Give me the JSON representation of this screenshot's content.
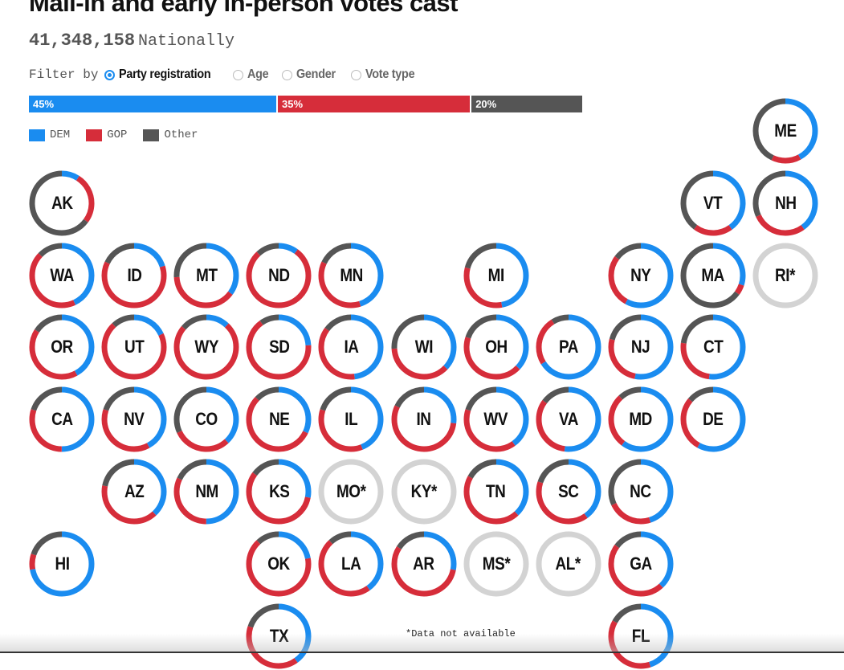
{
  "header": {
    "title": "Mail-in and early in-person votes cast",
    "total": "41,348,158",
    "total_label": "Nationally"
  },
  "filter": {
    "label": "Filter by",
    "options": [
      {
        "label": "Party registration",
        "checked": true
      },
      {
        "label": "Age",
        "checked": false
      },
      {
        "label": "Gender",
        "checked": false
      },
      {
        "label": "Vote type",
        "checked": false
      }
    ]
  },
  "national_bar": [
    {
      "label": "45%",
      "value": 45,
      "party": "DEM"
    },
    {
      "label": "35%",
      "value": 35,
      "party": "GOP"
    },
    {
      "label": "20%",
      "value": 20,
      "party": "Other"
    }
  ],
  "legend": [
    {
      "label": "DEM",
      "color": "#1a8cf0"
    },
    {
      "label": "GOP",
      "color": "#d62d3a"
    },
    {
      "label": "Other",
      "color": "#555555"
    }
  ],
  "colors": {
    "dem": "#1a8cf0",
    "gop": "#d62d3a",
    "other": "#555555",
    "na": "#d3d3d3"
  },
  "states": [
    {
      "abbr": "ME",
      "dem": 0.42,
      "gop": 0.15,
      "other": 0.43
    },
    {
      "abbr": "AK",
      "dem": 0.09,
      "gop": 0.26,
      "other": 0.65
    },
    {
      "abbr": "VT",
      "dem": 0.4,
      "gop": 0.2,
      "other": 0.4
    },
    {
      "abbr": "NH",
      "dem": 0.4,
      "gop": 0.28,
      "other": 0.32
    },
    {
      "abbr": "WA",
      "dem": 0.43,
      "gop": 0.44,
      "other": 0.13
    },
    {
      "abbr": "ID",
      "dem": 0.2,
      "gop": 0.62,
      "other": 0.18
    },
    {
      "abbr": "MT",
      "dem": 0.35,
      "gop": 0.39,
      "other": 0.26
    },
    {
      "abbr": "ND",
      "dem": 0.1,
      "gop": 0.78,
      "other": 0.12
    },
    {
      "abbr": "MN",
      "dem": 0.45,
      "gop": 0.37,
      "other": 0.18
    },
    {
      "abbr": "MI",
      "dem": 0.47,
      "gop": 0.32,
      "other": 0.21
    },
    {
      "abbr": "NY",
      "dem": 0.58,
      "gop": 0.27,
      "other": 0.15
    },
    {
      "abbr": "MA",
      "dem": 0.3,
      "gop": 0.05,
      "other": 0.65
    },
    {
      "abbr": "RI*",
      "na": true
    },
    {
      "abbr": "OR",
      "dem": 0.42,
      "gop": 0.42,
      "other": 0.16
    },
    {
      "abbr": "UT",
      "dem": 0.18,
      "gop": 0.7,
      "other": 0.12
    },
    {
      "abbr": "WY",
      "dem": 0.12,
      "gop": 0.74,
      "other": 0.14
    },
    {
      "abbr": "SD",
      "dem": 0.24,
      "gop": 0.66,
      "other": 0.1
    },
    {
      "abbr": "IA",
      "dem": 0.48,
      "gop": 0.37,
      "other": 0.15
    },
    {
      "abbr": "WI",
      "dem": 0.37,
      "gop": 0.37,
      "other": 0.26
    },
    {
      "abbr": "OH",
      "dem": 0.37,
      "gop": 0.43,
      "other": 0.2
    },
    {
      "abbr": "PA",
      "dem": 0.66,
      "gop": 0.25,
      "other": 0.09
    },
    {
      "abbr": "NJ",
      "dem": 0.53,
      "gop": 0.26,
      "other": 0.21
    },
    {
      "abbr": "CT",
      "dem": 0.52,
      "gop": 0.25,
      "other": 0.23
    },
    {
      "abbr": "CA",
      "dem": 0.5,
      "gop": 0.3,
      "other": 0.2
    },
    {
      "abbr": "NV",
      "dem": 0.42,
      "gop": 0.38,
      "other": 0.2
    },
    {
      "abbr": "CO",
      "dem": 0.38,
      "gop": 0.3,
      "other": 0.32
    },
    {
      "abbr": "NE",
      "dem": 0.32,
      "gop": 0.55,
      "other": 0.13
    },
    {
      "abbr": "IL",
      "dem": 0.44,
      "gop": 0.36,
      "other": 0.2
    },
    {
      "abbr": "IN",
      "dem": 0.27,
      "gop": 0.55,
      "other": 0.18
    },
    {
      "abbr": "WV",
      "dem": 0.4,
      "gop": 0.4,
      "other": 0.2
    },
    {
      "abbr": "VA",
      "dem": 0.52,
      "gop": 0.33,
      "other": 0.15
    },
    {
      "abbr": "MD",
      "dem": 0.6,
      "gop": 0.28,
      "other": 0.12
    },
    {
      "abbr": "DE",
      "dem": 0.58,
      "gop": 0.28,
      "other": 0.14
    },
    {
      "abbr": "AZ",
      "dem": 0.38,
      "gop": 0.4,
      "other": 0.22
    },
    {
      "abbr": "NM",
      "dem": 0.5,
      "gop": 0.32,
      "other": 0.18
    },
    {
      "abbr": "KS",
      "dem": 0.28,
      "gop": 0.57,
      "other": 0.15
    },
    {
      "abbr": "MO*",
      "na": true
    },
    {
      "abbr": "KY*",
      "na": true
    },
    {
      "abbr": "TN",
      "dem": 0.38,
      "gop": 0.45,
      "other": 0.17
    },
    {
      "abbr": "SC",
      "dem": 0.4,
      "gop": 0.4,
      "other": 0.2
    },
    {
      "abbr": "NC",
      "dem": 0.45,
      "gop": 0.23,
      "other": 0.32
    },
    {
      "abbr": "HI",
      "dem": 0.72,
      "gop": 0.08,
      "other": 0.2
    },
    {
      "abbr": "OK",
      "dem": 0.22,
      "gop": 0.66,
      "other": 0.12
    },
    {
      "abbr": "LA",
      "dem": 0.4,
      "gop": 0.48,
      "other": 0.12
    },
    {
      "abbr": "AR",
      "dem": 0.28,
      "gop": 0.56,
      "other": 0.16
    },
    {
      "abbr": "MS*",
      "na": true
    },
    {
      "abbr": "AL*",
      "na": true
    },
    {
      "abbr": "GA",
      "dem": 0.38,
      "gop": 0.47,
      "other": 0.15
    },
    {
      "abbr": "TX",
      "dem": 0.4,
      "gop": 0.4,
      "other": 0.2
    },
    {
      "abbr": "FL",
      "dem": 0.45,
      "gop": 0.38,
      "other": 0.17
    }
  ],
  "footnote": "*Data not available"
}
